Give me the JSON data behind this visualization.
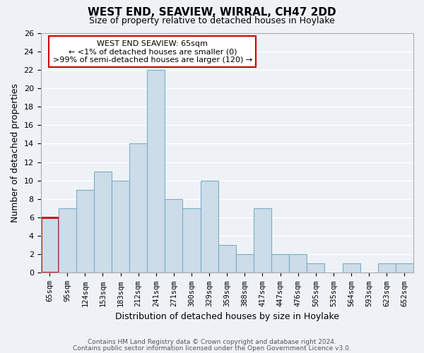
{
  "title": "WEST END, SEAVIEW, WIRRAL, CH47 2DD",
  "subtitle": "Size of property relative to detached houses in Hoylake",
  "xlabel": "Distribution of detached houses by size in Hoylake",
  "ylabel": "Number of detached properties",
  "categories": [
    "65sqm",
    "95sqm",
    "124sqm",
    "153sqm",
    "183sqm",
    "212sqm",
    "241sqm",
    "271sqm",
    "300sqm",
    "329sqm",
    "359sqm",
    "388sqm",
    "417sqm",
    "447sqm",
    "476sqm",
    "505sqm",
    "535sqm",
    "564sqm",
    "593sqm",
    "623sqm",
    "652sqm"
  ],
  "values": [
    6,
    7,
    9,
    11,
    10,
    14,
    22,
    8,
    7,
    10,
    3,
    2,
    7,
    2,
    2,
    1,
    0,
    1,
    0,
    1,
    1
  ],
  "bar_color": "#ccdce8",
  "bar_edge_color": "#7aaec8",
  "highlight_edge_color": "#cc0000",
  "ylim": [
    0,
    26
  ],
  "yticks": [
    0,
    2,
    4,
    6,
    8,
    10,
    12,
    14,
    16,
    18,
    20,
    22,
    24,
    26
  ],
  "annotation_title": "WEST END SEAVIEW: 65sqm",
  "annotation_line1": "← <1% of detached houses are smaller (0)",
  "annotation_line2": ">99% of semi-detached houses are larger (120) →",
  "annotation_box_color": "#ffffff",
  "annotation_box_edge": "#cc0000",
  "footer1": "Contains HM Land Registry data © Crown copyright and database right 2024.",
  "footer2": "Contains public sector information licensed under the Open Government Licence v3.0.",
  "bg_color": "#eef2f7",
  "grid_color": "#ffffff"
}
